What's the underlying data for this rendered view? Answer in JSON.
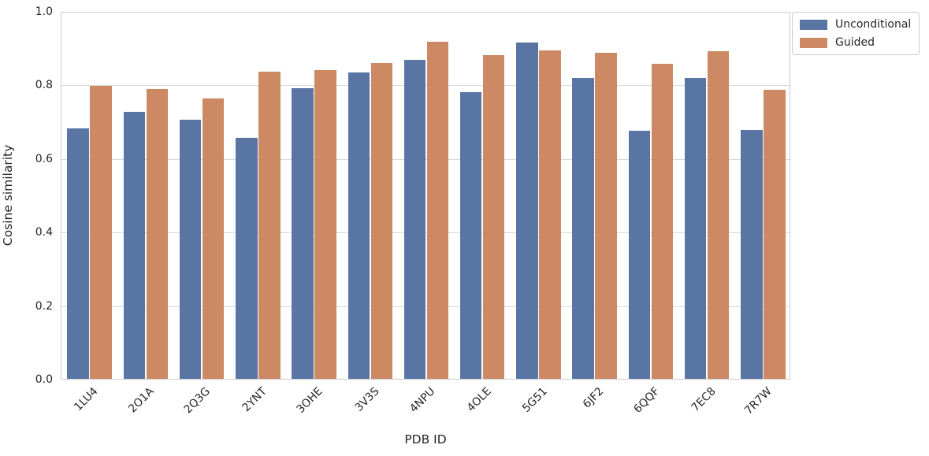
{
  "chart_data": {
    "type": "bar",
    "title": "",
    "xlabel": "PDB ID",
    "ylabel": "Cosine similarity",
    "categories": [
      "1LU4",
      "2O1A",
      "2Q3G",
      "2YNT",
      "3OHE",
      "3V3S",
      "4NPU",
      "4OLE",
      "5G51",
      "6JF2",
      "6QQF",
      "7EC8",
      "7R7W"
    ],
    "series": [
      {
        "name": "Unconditional",
        "color": "#5875A4",
        "values": [
          0.681,
          0.725,
          0.705,
          0.656,
          0.79,
          0.832,
          0.868,
          0.78,
          0.915,
          0.817,
          0.674,
          0.818,
          0.676
        ]
      },
      {
        "name": "Guided",
        "color": "#CC8963",
        "values": [
          0.797,
          0.788,
          0.763,
          0.836,
          0.84,
          0.859,
          0.917,
          0.88,
          0.894,
          0.886,
          0.857,
          0.89,
          0.786
        ]
      }
    ],
    "ylim": [
      0.0,
      1.0
    ],
    "yticks": [
      0.0,
      0.2,
      0.4,
      0.6,
      0.8,
      1.0
    ],
    "ytick_labels": [
      "0.0",
      "0.2",
      "0.4",
      "0.6",
      "0.8",
      "1.0"
    ],
    "x_tick_rotation": 45,
    "grid": "horizontal",
    "legend_position": "upper-right-outside"
  },
  "colors": {
    "grid": "#d9d9d9",
    "spine": "#cccccc",
    "text": "#262626",
    "background": "#ffffff"
  }
}
